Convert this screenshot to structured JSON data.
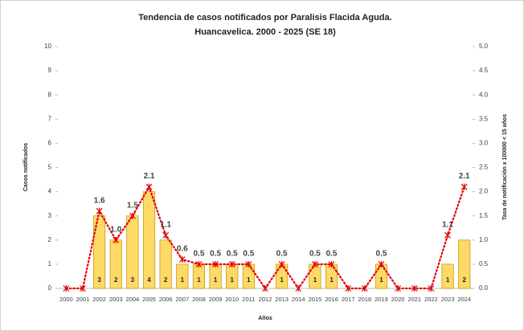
{
  "chart_data": {
    "type": "bar_line",
    "title": [
      "Tendencia de casos notificados por Paralisis Flacida Aguda.",
      "Huancavelica. 2000 - 2025 (SE 18)"
    ],
    "xlabel": "Años",
    "ylabel": "Casos  notificados",
    "y2label": "Tasa de notificación x 100000 < 15 años",
    "categories": [
      "2000",
      "2001",
      "2002",
      "2003",
      "2004",
      "2005",
      "2006",
      "2007",
      "2008",
      "2009",
      "2010",
      "2011",
      "2012",
      "2013",
      "2014",
      "2015",
      "2016",
      "2017",
      "2018",
      "2019",
      "2020",
      "2021",
      "2022",
      "2023",
      "2024"
    ],
    "series": [
      {
        "name": "Casos",
        "type": "bar",
        "color": "#FFD966",
        "values": [
          0,
          0,
          3,
          2,
          3,
          4,
          2,
          1,
          1,
          1,
          1,
          1,
          0,
          1,
          0,
          1,
          1,
          0,
          0,
          1,
          0,
          0,
          0,
          1,
          2
        ]
      },
      {
        "name": "Tasa",
        "type": "line",
        "axis": "y2",
        "color": "#E00000",
        "values": [
          0,
          0,
          1.6,
          1.0,
          1.5,
          2.1,
          1.1,
          0.6,
          0.5,
          0.5,
          0.5,
          0.5,
          0,
          0.5,
          0,
          0.5,
          0.5,
          0,
          0,
          0.5,
          0,
          0,
          0,
          1.1,
          2.1
        ],
        "value_labels": [
          null,
          null,
          "1.6",
          "1.0",
          "1.5",
          "2.1",
          "1.1",
          "0.6",
          "0.5",
          "0.5",
          "0.5",
          "0.5",
          null,
          "0.5",
          null,
          "0.5",
          "0.5",
          null,
          null,
          "0.5",
          null,
          null,
          null,
          "1.1",
          "2.1"
        ]
      }
    ],
    "ylim": [
      0,
      10
    ],
    "yticks": [
      0,
      1,
      2,
      3,
      4,
      5,
      6,
      7,
      8,
      9,
      10
    ],
    "y2lim": [
      0,
      5
    ],
    "y2ticks": [
      {
        "value": 0,
        "label": "0.0"
      },
      0.5,
      {
        "value": 1,
        "label": "1.0"
      },
      1.5,
      {
        "value": 2,
        "label": "2.0"
      },
      2.5,
      {
        "value": 3,
        "label": "3.0"
      },
      3.5,
      {
        "value": 4,
        "label": "4.0"
      },
      4.5,
      {
        "value": 5,
        "label": "5.0"
      }
    ]
  }
}
